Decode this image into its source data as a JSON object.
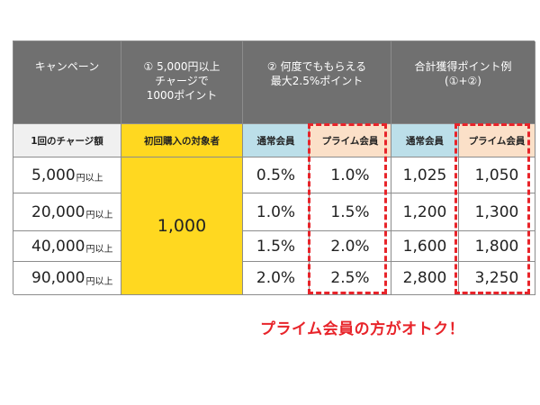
{
  "headers": {
    "campaign": "キャンペーン",
    "col1": "① 5,000円以上\nチャージで\n1000ポイント",
    "col2": "② 何度でももらえる\n最大2.5%ポイント",
    "col3": "合計獲得ポイント例\n(①+②)"
  },
  "subheaders": {
    "charge_amount": "1回のチャージ額",
    "first_purchase": "初回購入の対象者",
    "regular_member_1": "通常会員",
    "prime_member_1": "プライム会員",
    "regular_member_2": "通常会員",
    "prime_member_2": "プライム会員"
  },
  "first_purchase_value": "1,000",
  "rows": [
    {
      "amount": "5,000",
      "unit": "円以上",
      "regular_rate": "0.5%",
      "prime_rate": "1.0%",
      "regular_total": "1,025",
      "prime_total": "1,050"
    },
    {
      "amount": "20,000",
      "unit": "円以上",
      "regular_rate": "1.0%",
      "prime_rate": "1.5%",
      "regular_total": "1,200",
      "prime_total": "1,300"
    },
    {
      "amount": "40,000",
      "unit": "円以上",
      "regular_rate": "1.5%",
      "prime_rate": "2.0%",
      "regular_total": "1,600",
      "prime_total": "1,800"
    },
    {
      "amount": "90,000",
      "unit": "円以上",
      "regular_rate": "2.0%",
      "prime_rate": "2.5%",
      "regular_total": "2,800",
      "prime_total": "3,250"
    }
  ],
  "note": "プライム会員の方がオトク！",
  "colors": {
    "header_bg": "#707070",
    "yellow": "#ffd820",
    "regular_bg": "#bcdfe9",
    "prime_bg": "#fbe0c8",
    "accent_red": "#e8242a"
  }
}
